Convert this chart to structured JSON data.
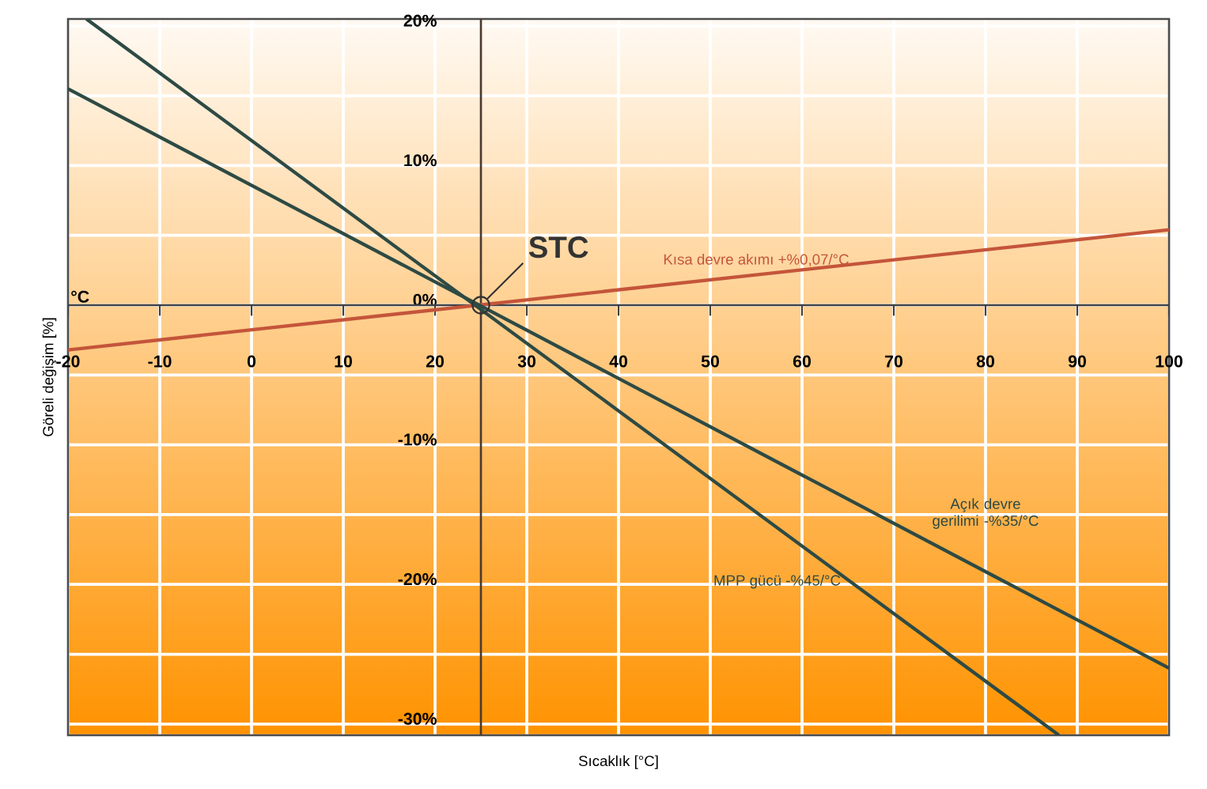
{
  "chart_data": {
    "type": "line",
    "xlabel": "Sıcaklık [°C]",
    "ylabel": "Göreli değişim [%]",
    "xlim": [
      -20,
      100
    ],
    "ylim": [
      -30.8,
      20.5
    ],
    "xticks": [
      -20,
      -10,
      0,
      10,
      20,
      30,
      40,
      50,
      60,
      70,
      80,
      90,
      100
    ],
    "yticks": [
      {
        "value": -30,
        "label": "-30%"
      },
      {
        "value": -25,
        "label": null
      },
      {
        "value": -20,
        "label": "-20%"
      },
      {
        "value": -15,
        "label": null
      },
      {
        "value": -10,
        "label": "-10%"
      },
      {
        "value": -5,
        "label": null
      },
      {
        "value": 0,
        "label": "0%"
      },
      {
        "value": 5,
        "label": null
      },
      {
        "value": 10,
        "label": "10%"
      },
      {
        "value": 15,
        "label": null
      },
      {
        "value": 20,
        "label": "20%"
      }
    ],
    "grid": true,
    "line_style": "solid",
    "series": [
      {
        "name": "Kısa devre akımı +%0,07/°C",
        "color": "#c4553a",
        "x": [
          -20,
          100
        ],
        "values": [
          -3.2,
          5.4
        ]
      },
      {
        "name": "Açık devre gerilimi -%35/°C",
        "color": "#2e4a44",
        "x": [
          -20,
          100
        ],
        "values": [
          15.5,
          -26
        ]
      },
      {
        "name": "MPP gücü -%45/°C",
        "color": "#2e4a44",
        "x": [
          -18,
          88
        ],
        "values": [
          20.5,
          -30.8
        ]
      }
    ],
    "ref_lines": [
      {
        "axis": "x",
        "value": 25,
        "color": "#4a3a30"
      }
    ],
    "annotations": [
      "°C",
      {
        "text": "STC",
        "x": 25,
        "y": 0
      }
    ]
  }
}
